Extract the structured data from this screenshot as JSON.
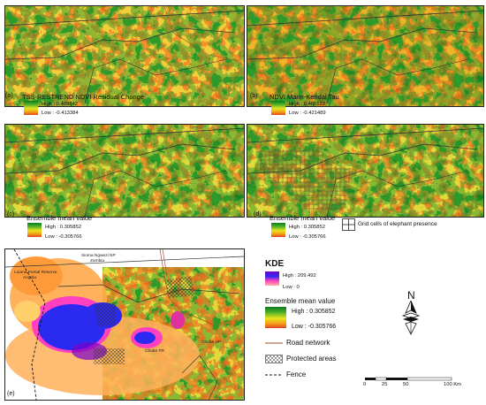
{
  "panels": [
    {
      "id": "a",
      "label": "(a)",
      "title": "TSS-RESTREND NDVI Residual Change",
      "high": "High : 0.409842",
      "low": "Low : -0.413384"
    },
    {
      "id": "b",
      "label": "(b)",
      "title": "NDVI Mann-Kendal Tau",
      "high": "High : 0.406122",
      "low": "Low : -0.421489"
    },
    {
      "id": "c",
      "label": "(c)",
      "title": "Ensemble mean value",
      "high": "High : 0.305852",
      "low": "Low : -0.305766"
    },
    {
      "id": "d",
      "label": "(d)",
      "title": "Ensemble mean value",
      "high": "High : 0.305852",
      "low": "Low : -0.305766",
      "grid_label": "Grid cells of elephant presence"
    },
    {
      "id": "e",
      "label": "(e)"
    }
  ],
  "map_e_labels": {
    "sioma": "Sioma Ngwezi NP",
    "zambia": "Zambia",
    "luiana": "Luiana Partial Reserve",
    "angola": "Angola",
    "chobe_fr": "Chobe FR",
    "chobe_np": "Chobe NP"
  },
  "legend": {
    "kde_title": "KDE",
    "kde_high": "High : 209.492",
    "kde_low": "Low : 0",
    "ens_title": "Ensemble mean value",
    "ens_high": "High : 0.305852",
    "ens_low": "Low : -0.305766",
    "road": "Road network",
    "protected": "Protected areas",
    "fence": "Fence"
  },
  "north_label": "N",
  "scale": {
    "ticks": [
      "0",
      "25",
      "50",
      "100 Km"
    ]
  },
  "colors": {
    "green": "#1f8a2a",
    "yellow": "#e8e51c",
    "orange": "#f39a1a",
    "red": "#e2441b",
    "purple": "#7a00c8",
    "blue": "#2a2af0",
    "pink": "#ff40c0",
    "road": "#a0522d"
  }
}
